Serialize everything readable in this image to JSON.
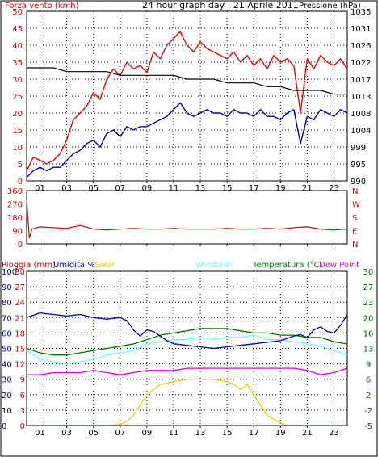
{
  "title": "24 hour graph day : 21 Aprile 2011",
  "panels": {
    "top": {
      "left_label": "Forza vento (kmh)",
      "right_label": "Pressione (hPa)"
    },
    "bottom": {
      "labels": {
        "rain": "Pioggia (mm)",
        "humidity": "Umidita %",
        "solar": "Solar",
        "windchill": "Windchill",
        "temperature": "Temperatura (°C)",
        "dewpoint": "Dew Point"
      }
    }
  },
  "x_ticks": [
    "01",
    "03",
    "05",
    "07",
    "09",
    "11",
    "13",
    "15",
    "17",
    "19",
    "21",
    "23"
  ],
  "colors": {
    "gust": "#ee0000",
    "wind_avg": "#0000aa",
    "pressure": "#000000",
    "direction": "#cc0000",
    "humidity": "#000099",
    "temperature": "#007700",
    "windchill": "#66ffff",
    "dewpoint": "#dd00dd",
    "solar": "#eecc00",
    "rain": "#cc0000",
    "grid": "#000000",
    "left_axis_text": "#cc0000",
    "right_axis_text": "#000000",
    "green_axis_text": "#006600"
  },
  "chart_data": [
    {
      "type": "line",
      "name": "wind_pressure",
      "x_domain": [
        0,
        24
      ],
      "y_left_ticks": [
        0,
        5,
        10,
        15,
        20,
        25,
        30,
        35,
        40,
        45,
        50
      ],
      "y_right_ticks": [
        990,
        995,
        999,
        1004,
        1008,
        1013,
        1017,
        1022,
        1026,
        1031,
        1035
      ],
      "ylim_left": [
        0,
        50
      ],
      "ylim_right": [
        990,
        1035
      ],
      "series": [
        {
          "key": "gust",
          "axis": "left",
          "x": [
            0,
            0.5,
            1,
            1.5,
            2,
            2.5,
            3,
            3.5,
            4,
            4.5,
            5,
            5.5,
            6,
            6.5,
            7,
            7.5,
            8,
            8.5,
            9,
            9.5,
            10,
            10.5,
            11,
            11.5,
            12,
            12.5,
            13,
            13.5,
            14,
            14.5,
            15,
            15.5,
            16,
            16.5,
            17,
            17.5,
            18,
            18.5,
            19,
            19.5,
            20,
            20.5,
            21,
            21.5,
            22,
            22.5,
            23,
            23.5,
            24
          ],
          "values": [
            3,
            7,
            6,
            5,
            6,
            8,
            12,
            18,
            20,
            22,
            26,
            24,
            30,
            33,
            31,
            35,
            33,
            34,
            32,
            38,
            36,
            40,
            42,
            44,
            40,
            38,
            41,
            39,
            38,
            37,
            36,
            38,
            35,
            37,
            34,
            36,
            33,
            37,
            35,
            36,
            34,
            20,
            36,
            33,
            37,
            35,
            34,
            36,
            33
          ]
        },
        {
          "key": "wind_avg",
          "axis": "left",
          "x": [
            0,
            0.5,
            1,
            1.5,
            2,
            2.5,
            3,
            3.5,
            4,
            4.5,
            5,
            5.5,
            6,
            6.5,
            7,
            7.5,
            8,
            8.5,
            9,
            9.5,
            10,
            10.5,
            11,
            11.5,
            12,
            12.5,
            13,
            13.5,
            14,
            14.5,
            15,
            15.5,
            16,
            16.5,
            17,
            17.5,
            18,
            18.5,
            19,
            19.5,
            20,
            20.5,
            21,
            21.5,
            22,
            22.5,
            23,
            23.5,
            24
          ],
          "values": [
            1,
            3,
            4,
            3,
            4,
            4,
            6,
            8,
            9,
            11,
            12,
            10,
            14,
            15,
            13,
            16,
            15,
            16,
            16,
            17,
            18,
            19,
            21,
            23,
            20,
            19,
            20,
            21,
            20,
            20,
            19,
            21,
            20,
            20,
            19,
            21,
            19,
            19,
            18,
            20,
            21,
            11,
            19,
            18,
            21,
            20,
            19,
            21,
            20
          ]
        },
        {
          "key": "pressure",
          "axis": "right",
          "x": [
            0,
            1,
            2,
            3,
            4,
            5,
            6,
            7,
            8,
            9,
            10,
            11,
            12,
            13,
            14,
            15,
            16,
            17,
            18,
            19,
            20,
            21,
            22,
            23,
            24
          ],
          "values": [
            1020,
            1020,
            1020,
            1019,
            1019,
            1019,
            1019,
            1018,
            1018,
            1018,
            1018,
            1018,
            1017,
            1017,
            1017,
            1016,
            1016,
            1016,
            1015,
            1015,
            1014,
            1014,
            1014,
            1013,
            1013
          ]
        }
      ]
    },
    {
      "type": "line",
      "name": "wind_direction",
      "x_domain": [
        0,
        24
      ],
      "y_left_ticks": [
        0,
        90,
        180,
        270,
        360
      ],
      "y_right_ticks": [
        "N",
        "E",
        "S",
        "W",
        "N"
      ],
      "ylim": [
        0,
        360
      ],
      "series": [
        {
          "key": "direction",
          "x": [
            0,
            0.2,
            0.4,
            1,
            2,
            3,
            4,
            5,
            6,
            7,
            8,
            9,
            10,
            11,
            12,
            13,
            14,
            15,
            16,
            17,
            18,
            19,
            20,
            21,
            22,
            23,
            24
          ],
          "values": [
            300,
            40,
            100,
            115,
            110,
            105,
            125,
            100,
            95,
            100,
            105,
            100,
            100,
            105,
            100,
            100,
            100,
            105,
            100,
            100,
            105,
            100,
            110,
            115,
            100,
            95,
            100
          ]
        }
      ]
    },
    {
      "type": "line",
      "name": "rain_humidity_temp",
      "x_domain": [
        0,
        24
      ],
      "y_left_rain_ticks": [
        0,
        3,
        6,
        9,
        12,
        15,
        18,
        21,
        24,
        27,
        30
      ],
      "y_left_hum_ticks": [
        0,
        10,
        20,
        30,
        40,
        50,
        60,
        70,
        80,
        90,
        100
      ],
      "y_right_temp_ticks": [
        -5,
        -2,
        2,
        6,
        9,
        13,
        16,
        20,
        23,
        27,
        30
      ],
      "ylim_rain": [
        0,
        30
      ],
      "ylim_humidity": [
        0,
        100
      ],
      "ylim_temp": [
        -5,
        30
      ],
      "series": [
        {
          "key": "humidity",
          "axis": "humidity",
          "x": [
            0,
            1,
            2,
            3,
            4,
            5,
            6,
            7,
            7.5,
            8,
            8.5,
            9,
            9.5,
            10,
            10.5,
            11,
            12,
            13,
            14,
            15,
            16,
            17,
            18,
            19,
            20,
            20.5,
            21,
            21.5,
            22,
            22.5,
            23,
            23.5,
            24
          ],
          "values": [
            70,
            73,
            72,
            71,
            72,
            70,
            69,
            70,
            68,
            62,
            58,
            62,
            61,
            58,
            55,
            53,
            52,
            51,
            50,
            51,
            52,
            53,
            54,
            55,
            58,
            59,
            57,
            62,
            64,
            61,
            60,
            65,
            72
          ]
        },
        {
          "key": "temperature",
          "axis": "temp",
          "x": [
            0,
            1,
            2,
            3,
            4,
            5,
            6,
            7,
            8,
            9,
            10,
            11,
            12,
            13,
            14,
            15,
            16,
            17,
            18,
            19,
            20,
            21,
            22,
            23,
            24
          ],
          "values": [
            12.5,
            11.5,
            11,
            11,
            11.5,
            12,
            12.5,
            13,
            13.5,
            14.5,
            15.5,
            16,
            16.5,
            17,
            17,
            17,
            16.5,
            16,
            16,
            15.5,
            15.5,
            15,
            15,
            14,
            13.5
          ]
        },
        {
          "key": "windchill",
          "axis": "temp",
          "x": [
            0,
            1,
            2,
            3,
            4,
            5,
            6,
            7,
            8,
            9,
            10,
            11,
            12,
            13,
            14,
            15,
            16,
            17,
            18,
            19,
            20,
            21,
            22,
            23,
            24
          ],
          "values": [
            12,
            10,
            9.5,
            9,
            9.5,
            10,
            11,
            11.5,
            12,
            13.5,
            14,
            14.5,
            14.5,
            15,
            14.5,
            15,
            15,
            15.5,
            14.5,
            14.5,
            14,
            13.5,
            13,
            12,
            11
          ]
        },
        {
          "key": "dewpoint",
          "axis": "temp",
          "x": [
            0,
            1,
            2,
            3,
            4,
            5,
            6,
            7,
            8,
            9,
            10,
            11,
            12,
            13,
            14,
            15,
            16,
            17,
            18,
            19,
            20,
            21,
            22,
            23,
            24
          ],
          "values": [
            6.5,
            6.5,
            7,
            7,
            7,
            7.5,
            7,
            6.5,
            7,
            7.5,
            7.5,
            7.5,
            8,
            8,
            8,
            8,
            8,
            8,
            8,
            8,
            8,
            7.5,
            6.5,
            7,
            8
          ]
        },
        {
          "key": "solar",
          "axis": "rain",
          "x": [
            0,
            5,
            6,
            7,
            7.5,
            8,
            8.5,
            9,
            10,
            11,
            12,
            13,
            14,
            15,
            15.5,
            16,
            16.5,
            17,
            17.5,
            18,
            19,
            19.5,
            20,
            24
          ],
          "values": [
            0,
            0,
            0,
            0.2,
            0.8,
            2,
            4,
            6,
            8,
            8.5,
            9,
            9,
            9,
            8.5,
            8,
            7,
            8,
            6,
            4,
            2,
            0.5,
            0,
            0,
            0
          ]
        },
        {
          "key": "rain",
          "axis": "rain",
          "x": [
            0,
            24
          ],
          "values": [
            0,
            0
          ]
        }
      ]
    }
  ]
}
